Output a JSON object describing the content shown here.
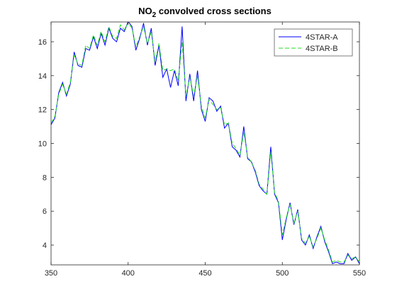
{
  "chart_data": {
    "type": "line",
    "title": {
      "main": "NO",
      "subscript": "2",
      "rest": " convolved cross sections"
    },
    "x": [
      350,
      352.5,
      355,
      357.5,
      360,
      362.5,
      365,
      367.5,
      370,
      372.5,
      375,
      377.5,
      380,
      382.5,
      385,
      387.5,
      390,
      392.5,
      395,
      397.5,
      400,
      402.5,
      405,
      407.5,
      410,
      412.5,
      415,
      417.5,
      420,
      422.5,
      425,
      427.5,
      430,
      432.5,
      435,
      437.5,
      440,
      442.5,
      445,
      447.5,
      450,
      452.5,
      455,
      457.5,
      460,
      462.5,
      465,
      467.5,
      470,
      472.5,
      475,
      477.5,
      480,
      482.5,
      485,
      487.5,
      490,
      492.5,
      495,
      497.5,
      500,
      502.5,
      505,
      507.5,
      510,
      512.5,
      515,
      517.5,
      520,
      522.5,
      525,
      527.5,
      530,
      532.5,
      535,
      537.5,
      540,
      542.5,
      545,
      547.5,
      550
    ],
    "series": [
      {
        "name": "4STAR-A",
        "color": "#0000ff",
        "dash": false,
        "values": [
          11.1,
          11.5,
          13.0,
          13.6,
          12.8,
          13.5,
          15.4,
          14.6,
          14.5,
          15.6,
          15.5,
          16.3,
          15.6,
          16.5,
          15.8,
          16.8,
          16.2,
          16.0,
          16.8,
          16.6,
          17.2,
          16.9,
          15.5,
          16.2,
          17.1,
          15.8,
          16.8,
          14.6,
          15.8,
          13.9,
          14.4,
          13.3,
          14.3,
          13.4,
          16.9,
          12.5,
          14.1,
          12.5,
          14.3,
          12.0,
          11.3,
          12.7,
          12.5,
          11.9,
          12.2,
          10.9,
          11.2,
          9.8,
          9.6,
          9.2,
          11.0,
          9.1,
          8.9,
          8.3,
          7.5,
          7.2,
          7.0,
          9.8,
          7.0,
          6.5,
          4.3,
          5.5,
          6.5,
          5.2,
          6.1,
          4.3,
          4.0,
          4.6,
          3.8,
          4.5,
          5.1,
          4.2,
          3.6,
          2.9,
          3.0,
          2.9,
          2.9,
          3.5,
          3.1,
          3.3,
          2.9
        ]
      },
      {
        "name": "4STAR-B",
        "color": "#22dd22",
        "dash": true,
        "values": [
          11.2,
          11.6,
          12.9,
          13.5,
          12.9,
          13.6,
          15.2,
          14.7,
          14.6,
          15.8,
          15.6,
          16.4,
          15.8,
          16.6,
          16.0,
          16.9,
          16.3,
          16.2,
          17.0,
          16.7,
          17.1,
          16.8,
          15.7,
          16.3,
          16.9,
          15.9,
          16.6,
          14.8,
          15.9,
          14.3,
          14.4,
          14.3,
          14.4,
          13.7,
          16.0,
          12.8,
          13.9,
          12.8,
          14.0,
          12.2,
          11.5,
          12.6,
          12.3,
          12.0,
          12.1,
          11.1,
          11.2,
          10.0,
          9.7,
          9.3,
          10.7,
          9.2,
          8.9,
          8.4,
          7.6,
          7.3,
          7.0,
          9.5,
          7.1,
          6.6,
          4.6,
          5.6,
          6.4,
          5.3,
          6.0,
          4.4,
          4.1,
          4.5,
          3.9,
          4.4,
          5.0,
          4.3,
          3.7,
          3.0,
          3.1,
          3.0,
          3.0,
          3.4,
          3.2,
          3.3,
          3.0
        ]
      }
    ],
    "xlim": [
      350,
      550
    ],
    "ylim": [
      2.83,
      17.17
    ],
    "xticks": [
      350,
      400,
      450,
      500,
      550
    ],
    "yticks": [
      4,
      6,
      8,
      10,
      12,
      14,
      16
    ],
    "legend": "upper right"
  }
}
